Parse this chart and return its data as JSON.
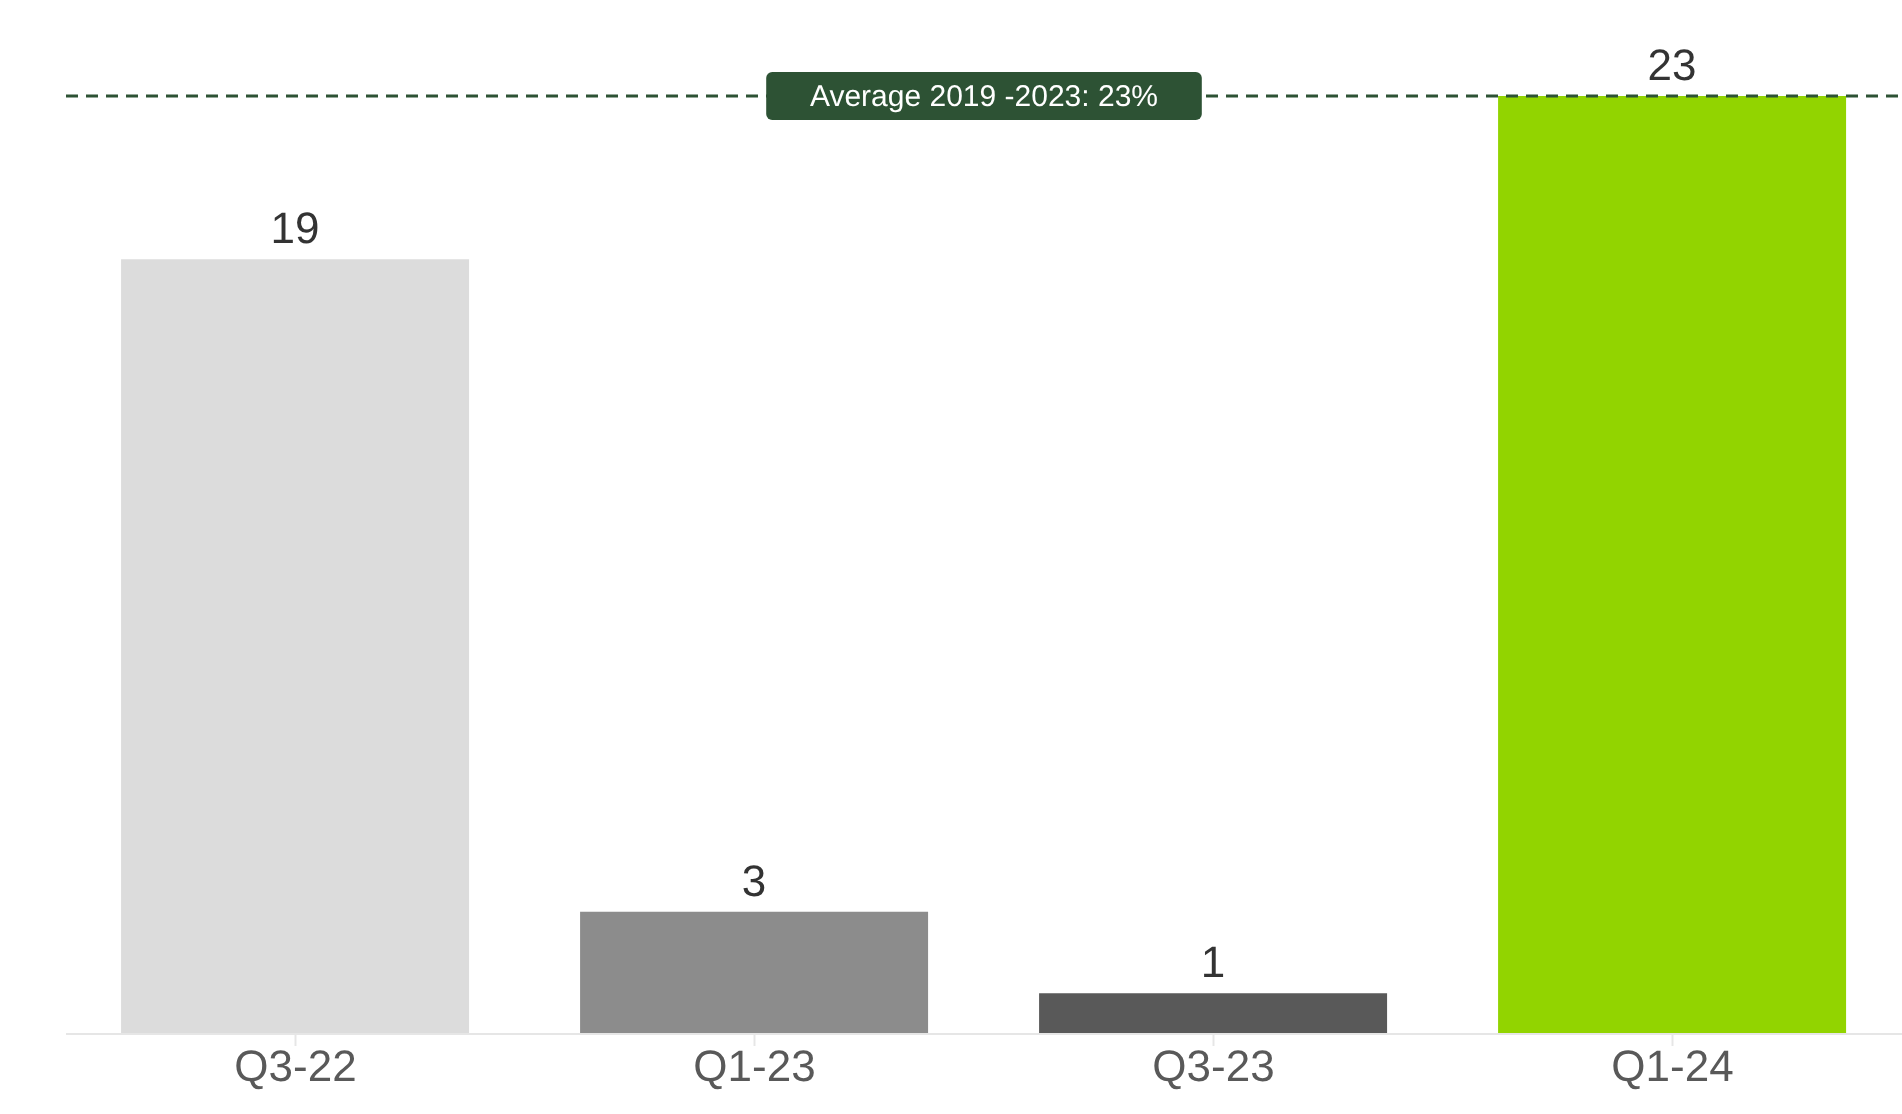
{
  "chart_data": {
    "type": "bar",
    "categories": [
      "Q3-22",
      "Q1-23",
      "Q3-23",
      "Q1-24"
    ],
    "values": [
      19,
      3,
      1,
      23
    ],
    "colors": [
      "#dcdcdc",
      "#8c8c8c",
      "#595959",
      "#92d400"
    ],
    "data_labels": true,
    "grid": false,
    "legend": false,
    "ref_lines": [
      {
        "axis": "y",
        "value": 23,
        "label": "Average 2019 -2023: 23%",
        "color": "#2d5234",
        "line_style": "dashed"
      }
    ]
  }
}
